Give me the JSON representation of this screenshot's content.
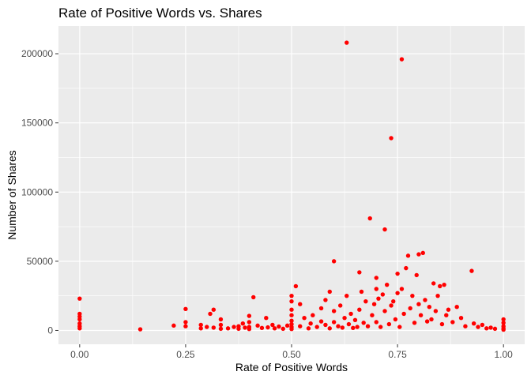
{
  "chart_data": {
    "type": "scatter",
    "title": "Rate of Positive Words vs. Shares",
    "xlabel": "Rate of Positive Words",
    "ylabel": "Number of Shares",
    "xlim": [
      -0.05,
      1.05
    ],
    "ylim": [
      -10000,
      220000
    ],
    "x_ticks": [
      0,
      0.25,
      0.5,
      0.75,
      1.0
    ],
    "x_tick_labels": [
      "0.00",
      "0.25",
      "0.50",
      "0.75",
      "1.00"
    ],
    "y_ticks": [
      0,
      50000,
      100000,
      150000,
      200000
    ],
    "y_tick_labels": [
      "0",
      "50000",
      "100000",
      "150000",
      "200000"
    ],
    "grid": true,
    "legend": "none",
    "point_color": "#ff0000",
    "panel_color": "#ebebeb",
    "gridline_color": "#ffffff",
    "points": [
      [
        0.0,
        23000
      ],
      [
        0.0,
        12000
      ],
      [
        0.0,
        10000
      ],
      [
        0.0,
        8000
      ],
      [
        0.0,
        5000
      ],
      [
        0.0,
        3000
      ],
      [
        0.0,
        1500
      ],
      [
        0.143,
        800
      ],
      [
        0.222,
        3500
      ],
      [
        0.25,
        15500
      ],
      [
        0.25,
        6000
      ],
      [
        0.25,
        3000
      ],
      [
        0.286,
        4000
      ],
      [
        0.286,
        1500
      ],
      [
        0.3,
        2500
      ],
      [
        0.308,
        12000
      ],
      [
        0.316,
        15000
      ],
      [
        0.316,
        2000
      ],
      [
        0.333,
        8000
      ],
      [
        0.333,
        4000
      ],
      [
        0.333,
        1200
      ],
      [
        0.35,
        1500
      ],
      [
        0.364,
        2500
      ],
      [
        0.375,
        3000
      ],
      [
        0.375,
        1200
      ],
      [
        0.385,
        5000
      ],
      [
        0.39,
        2000
      ],
      [
        0.4,
        10500
      ],
      [
        0.4,
        6000
      ],
      [
        0.4,
        2500
      ],
      [
        0.4,
        1000
      ],
      [
        0.41,
        24000
      ],
      [
        0.42,
        3500
      ],
      [
        0.43,
        1800
      ],
      [
        0.44,
        9000
      ],
      [
        0.444,
        2200
      ],
      [
        0.455,
        4000
      ],
      [
        0.46,
        1500
      ],
      [
        0.47,
        2800
      ],
      [
        0.48,
        1200
      ],
      [
        0.49,
        3500
      ],
      [
        0.5,
        25000
      ],
      [
        0.5,
        21000
      ],
      [
        0.5,
        15000
      ],
      [
        0.5,
        11000
      ],
      [
        0.5,
        7000
      ],
      [
        0.5,
        4500
      ],
      [
        0.5,
        2500
      ],
      [
        0.5,
        1000
      ],
      [
        0.51,
        32000
      ],
      [
        0.52,
        19000
      ],
      [
        0.52,
        3000
      ],
      [
        0.53,
        9000
      ],
      [
        0.54,
        1500
      ],
      [
        0.545,
        5000
      ],
      [
        0.55,
        11000
      ],
      [
        0.56,
        2500
      ],
      [
        0.57,
        16000
      ],
      [
        0.57,
        6500
      ],
      [
        0.58,
        22000
      ],
      [
        0.58,
        4000
      ],
      [
        0.59,
        28000
      ],
      [
        0.59,
        1500
      ],
      [
        0.6,
        50000
      ],
      [
        0.6,
        14000
      ],
      [
        0.6,
        6000
      ],
      [
        0.61,
        3000
      ],
      [
        0.615,
        18000
      ],
      [
        0.62,
        2000
      ],
      [
        0.625,
        9000
      ],
      [
        0.63,
        208000
      ],
      [
        0.63,
        25000
      ],
      [
        0.635,
        4500
      ],
      [
        0.64,
        12000
      ],
      [
        0.645,
        1800
      ],
      [
        0.65,
        7500
      ],
      [
        0.655,
        2500
      ],
      [
        0.66,
        42000
      ],
      [
        0.66,
        15000
      ],
      [
        0.665,
        28000
      ],
      [
        0.67,
        5500
      ],
      [
        0.675,
        21000
      ],
      [
        0.68,
        3000
      ],
      [
        0.685,
        81000
      ],
      [
        0.69,
        11000
      ],
      [
        0.695,
        19000
      ],
      [
        0.7,
        38000
      ],
      [
        0.7,
        30000
      ],
      [
        0.7,
        6000
      ],
      [
        0.705,
        23000
      ],
      [
        0.71,
        2500
      ],
      [
        0.715,
        26000
      ],
      [
        0.72,
        73000
      ],
      [
        0.72,
        14000
      ],
      [
        0.725,
        33000
      ],
      [
        0.73,
        4500
      ],
      [
        0.735,
        139000
      ],
      [
        0.735,
        18000
      ],
      [
        0.74,
        21000
      ],
      [
        0.745,
        8000
      ],
      [
        0.75,
        41000
      ],
      [
        0.75,
        27000
      ],
      [
        0.755,
        2500
      ],
      [
        0.76,
        196000
      ],
      [
        0.76,
        30000
      ],
      [
        0.765,
        12000
      ],
      [
        0.77,
        45000
      ],
      [
        0.775,
        54000
      ],
      [
        0.78,
        16000
      ],
      [
        0.785,
        25000
      ],
      [
        0.79,
        5500
      ],
      [
        0.795,
        40000
      ],
      [
        0.8,
        55000
      ],
      [
        0.8,
        19000
      ],
      [
        0.805,
        11000
      ],
      [
        0.81,
        56000
      ],
      [
        0.815,
        22000
      ],
      [
        0.82,
        6500
      ],
      [
        0.825,
        17000
      ],
      [
        0.83,
        8000
      ],
      [
        0.835,
        34000
      ],
      [
        0.84,
        14000
      ],
      [
        0.845,
        25000
      ],
      [
        0.85,
        32000
      ],
      [
        0.855,
        4500
      ],
      [
        0.86,
        33000
      ],
      [
        0.865,
        11000
      ],
      [
        0.87,
        15000
      ],
      [
        0.88,
        6000
      ],
      [
        0.89,
        17000
      ],
      [
        0.9,
        9000
      ],
      [
        0.91,
        3000
      ],
      [
        0.925,
        43000
      ],
      [
        0.93,
        5000
      ],
      [
        0.94,
        2500
      ],
      [
        0.95,
        4000
      ],
      [
        0.96,
        1500
      ],
      [
        0.97,
        2000
      ],
      [
        0.98,
        1200
      ],
      [
        1.0,
        8000
      ],
      [
        1.0,
        5500
      ],
      [
        1.0,
        3000
      ],
      [
        1.0,
        1500
      ],
      [
        1.0,
        500
      ]
    ]
  }
}
